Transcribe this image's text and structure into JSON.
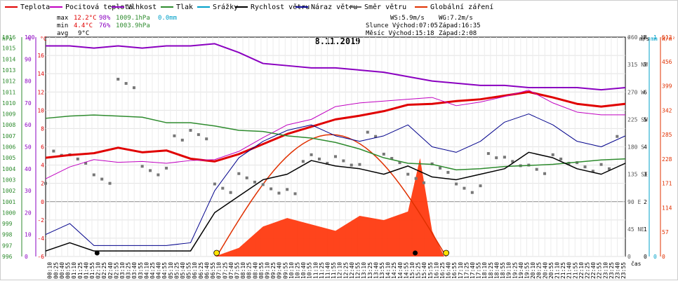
{
  "legend": [
    {
      "label": "Teplota",
      "color": "#e00000"
    },
    {
      "label": "Pocitová teplota",
      "color": "#c000c0"
    },
    {
      "label": "Vlhkost",
      "color": "#8a00c0"
    },
    {
      "label": "Tlak",
      "color": "#2e8b2e"
    },
    {
      "label": "Srážky",
      "color": "#00a0c8"
    },
    {
      "label": "Rychlost větru",
      "color": "#000000"
    },
    {
      "label": "Náraz větru",
      "color": "#00008b"
    },
    {
      "label": "Směr větru",
      "color": "#606060"
    },
    {
      "label": "Globální záření",
      "color": "#e03000"
    }
  ],
  "stats": {
    "max": {
      "label": "max",
      "temp": "12.2°C",
      "hum": "98%",
      "press": "1009.1hPa",
      "rain": "0.0mm"
    },
    "min": {
      "label": "min",
      "temp": "4.4°C",
      "hum": "76%",
      "press": "1003.9hPa"
    },
    "avg": {
      "label": "avg",
      "temp": "9°C"
    }
  },
  "info": {
    "ws": "WS:5.9m/s",
    "wg": "WG:7.2m/s",
    "slunce": "Slunce Východ:07:05",
    "slunce_zapad": "Západ:16:35",
    "mesic": "Měsíc Východ:15:18",
    "mesic_zapad": "Západ:2:08"
  },
  "colors": {
    "hpa_axis": "#2e8b2e",
    "pct_axis": "#8a00c0",
    "c_axis": "#e00000",
    "ms_axis": "#000000",
    "mm_axis": "#00a0c8",
    "wm_axis": "#e03000"
  },
  "chart_data": {
    "type": "line",
    "title": "8.11.2019",
    "xlabel": "čas",
    "x_ticks": [
      "00:10",
      "00:25",
      "00:40",
      "00:55",
      "01:10",
      "01:25",
      "01:40",
      "01:55",
      "02:10",
      "02:25",
      "02:40",
      "02:55",
      "03:10",
      "03:25",
      "03:40",
      "03:55",
      "04:10",
      "04:25",
      "04:40",
      "04:55",
      "05:10",
      "05:25",
      "05:40",
      "05:55",
      "06:10",
      "06:25",
      "06:40",
      "06:55",
      "07:10",
      "07:25",
      "07:40",
      "07:55",
      "08:10",
      "08:25",
      "08:40",
      "08:55",
      "09:10",
      "09:25",
      "09:40",
      "09:55",
      "10:10",
      "10:25",
      "10:40",
      "10:55",
      "11:10",
      "11:25",
      "11:40",
      "11:55",
      "12:10",
      "12:25",
      "12:40",
      "12:55",
      "13:10",
      "13:25",
      "13:40",
      "13:55",
      "14:10",
      "14:25",
      "14:40",
      "14:55",
      "15:10",
      "15:25",
      "15:40",
      "15:55",
      "16:10",
      "16:25",
      "16:40",
      "16:55",
      "17:10",
      "17:25",
      "17:40",
      "17:55",
      "18:10",
      "18:25",
      "18:40",
      "18:55",
      "19:10",
      "19:25",
      "19:40",
      "19:55",
      "20:10",
      "20:25",
      "20:40",
      "20:55",
      "21:10",
      "21:25",
      "21:40",
      "21:55",
      "22:10",
      "22:25",
      "22:40",
      "22:55",
      "23:10",
      "23:25",
      "23:40",
      "23:55"
    ],
    "axes": {
      "hpa": {
        "label": "hPa",
        "range": [
          996,
          1016
        ],
        "ticks": [
          996,
          997,
          998,
          999,
          1000,
          1001,
          1002,
          1003,
          1004,
          1005,
          1006,
          1007,
          1008,
          1009,
          1010,
          1011,
          1012,
          1013,
          1014,
          1015,
          1016
        ]
      },
      "pct": {
        "label": "%",
        "range": [
          0,
          100
        ],
        "ticks": [
          0,
          10,
          20,
          30,
          40,
          50,
          60,
          70,
          80,
          90,
          100
        ]
      },
      "c": {
        "label": "°C",
        "range": [
          -6,
          18
        ],
        "ticks": [
          -6,
          -4,
          -2,
          0,
          2,
          4,
          6,
          8,
          10,
          12,
          14,
          16
        ]
      },
      "dir": {
        "label": "°",
        "range": [
          0,
          360
        ],
        "ticks": [
          {
            "v": 0,
            "t": "0"
          },
          {
            "v": 45,
            "t": "45 NE"
          },
          {
            "v": 90,
            "t": "90 E"
          },
          {
            "v": 135,
            "t": "135 SE"
          },
          {
            "v": 180,
            "t": "180 S"
          },
          {
            "v": 225,
            "t": "225 SW"
          },
          {
            "v": 270,
            "t": "270 W"
          },
          {
            "v": 315,
            "t": "315 NW"
          },
          {
            "v": 360,
            "t": "360 N"
          }
        ]
      },
      "ms": {
        "label": "m/s",
        "range": [
          0,
          8
        ],
        "ticks": [
          0,
          1,
          2,
          3,
          4,
          5,
          6,
          7,
          8
        ]
      },
      "mm": {
        "label": "mm",
        "range": [
          0,
          1
        ],
        "ticks": [
          0,
          1
        ]
      },
      "wm": {
        "label": "W/m²",
        "range": [
          0,
          513
        ],
        "ticks": [
          0,
          57,
          114,
          171,
          228,
          285,
          342,
          399,
          456,
          513
        ]
      }
    },
    "series": [
      {
        "name": "Teplota",
        "axis": "c",
        "hours": [
          0,
          1,
          2,
          3,
          4,
          5,
          6,
          7,
          8,
          9,
          10,
          11,
          12,
          13,
          14,
          15,
          16,
          17,
          18,
          19,
          20,
          21,
          22,
          23,
          24
        ],
        "values": [
          4.8,
          5.1,
          5.3,
          5.9,
          5.4,
          5.6,
          4.7,
          4.4,
          5.2,
          6.3,
          7.4,
          8.2,
          9.0,
          9.4,
          9.9,
          10.6,
          10.7,
          11.0,
          11.2,
          11.6,
          12.0,
          11.4,
          10.7,
          10.4,
          10.7
        ]
      },
      {
        "name": "Pocitová teplota",
        "axis": "c",
        "hours": [
          0,
          1,
          2,
          3,
          4,
          5,
          6,
          7,
          8,
          9,
          10,
          11,
          12,
          13,
          14,
          15,
          16,
          17,
          18,
          19,
          20,
          21,
          22,
          23,
          24
        ],
        "values": [
          2.5,
          3.8,
          4.6,
          4.3,
          4.4,
          4.2,
          4.5,
          4.6,
          5.5,
          7.0,
          8.4,
          9.0,
          10.4,
          10.8,
          11.0,
          11.2,
          11.4,
          10.5,
          10.9,
          11.5,
          12.2,
          10.8,
          9.8,
          9.5,
          9.5
        ]
      },
      {
        "name": "Vlhkost",
        "axis": "pct",
        "hours": [
          0,
          1,
          2,
          3,
          4,
          5,
          6,
          7,
          8,
          9,
          10,
          11,
          12,
          13,
          14,
          15,
          16,
          17,
          18,
          19,
          20,
          21,
          22,
          23,
          24
        ],
        "values": [
          96,
          96,
          95,
          96,
          95,
          96,
          96,
          97,
          93,
          88,
          87,
          86,
          86,
          85,
          84,
          82,
          80,
          79,
          78,
          78,
          77,
          77,
          77,
          76,
          77
        ]
      },
      {
        "name": "Tlak",
        "axis": "hpa",
        "hours": [
          0,
          1,
          2,
          3,
          4,
          5,
          6,
          7,
          8,
          9,
          10,
          11,
          12,
          13,
          14,
          15,
          16,
          17,
          18,
          19,
          20,
          21,
          22,
          23,
          24
        ],
        "values": [
          1008.6,
          1008.8,
          1008.9,
          1008.8,
          1008.7,
          1008.2,
          1008.2,
          1007.9,
          1007.5,
          1007.4,
          1007.0,
          1006.8,
          1006.4,
          1005.8,
          1005.0,
          1004.5,
          1004.4,
          1003.9,
          1004.0,
          1004.2,
          1004.3,
          1004.4,
          1004.6,
          1004.8,
          1004.9
        ]
      },
      {
        "name": "Rychlost větru",
        "axis": "ms",
        "hours": [
          0,
          1,
          2,
          3,
          4,
          5,
          6,
          7,
          8,
          9,
          10,
          11,
          12,
          13,
          14,
          15,
          16,
          17,
          18,
          19,
          20,
          21,
          22,
          23,
          24
        ],
        "values": [
          0.2,
          0.5,
          0.2,
          0.2,
          0.2,
          0.2,
          0.2,
          1.6,
          2.2,
          2.8,
          3.0,
          3.5,
          3.3,
          3.2,
          3.0,
          3.3,
          2.9,
          2.8,
          3.0,
          3.2,
          3.8,
          3.6,
          3.2,
          3.0,
          3.4
        ]
      },
      {
        "name": "Náraz větru",
        "axis": "ms",
        "hours": [
          0,
          1,
          2,
          3,
          4,
          5,
          6,
          7,
          8,
          9,
          10,
          11,
          12,
          13,
          14,
          15,
          16,
          17,
          18,
          19,
          20,
          21,
          22,
          23,
          24
        ],
        "values": [
          0.8,
          1.2,
          0.4,
          0.4,
          0.4,
          0.4,
          0.5,
          2.4,
          3.6,
          4.2,
          4.6,
          4.8,
          4.4,
          4.2,
          4.4,
          4.8,
          4.0,
          3.8,
          4.2,
          4.9,
          5.2,
          4.8,
          4.2,
          4.0,
          4.4
        ]
      },
      {
        "name": "Globální záření",
        "axis": "wm",
        "hours": [
          7,
          8,
          9,
          10,
          11,
          12,
          13,
          14,
          15,
          15.5,
          16,
          16.5
        ],
        "values": [
          0,
          20,
          70,
          90,
          75,
          60,
          95,
          85,
          105,
          230,
          60,
          0
        ]
      }
    ],
    "direction_points": {
      "axis": "dir",
      "hours": [
        0,
        1,
        2,
        3,
        4,
        5,
        6,
        7,
        8,
        9,
        10,
        11,
        12,
        13,
        14,
        15,
        16,
        17,
        18,
        19,
        20,
        21,
        22,
        23
      ],
      "values": [
        150,
        160,
        150,
        270,
        150,
        170,
        195,
        130,
        110,
        115,
        130,
        150,
        170,
        180,
        160,
        150,
        130,
        120,
        140,
        150,
        160,
        140,
        150,
        170
      ]
    },
    "sunrise_marker_hour": 7.08,
    "sunset_marker_hour": 16.58,
    "moonrise_marker_hour": 15.3,
    "moonset_marker_hour": 2.13
  }
}
